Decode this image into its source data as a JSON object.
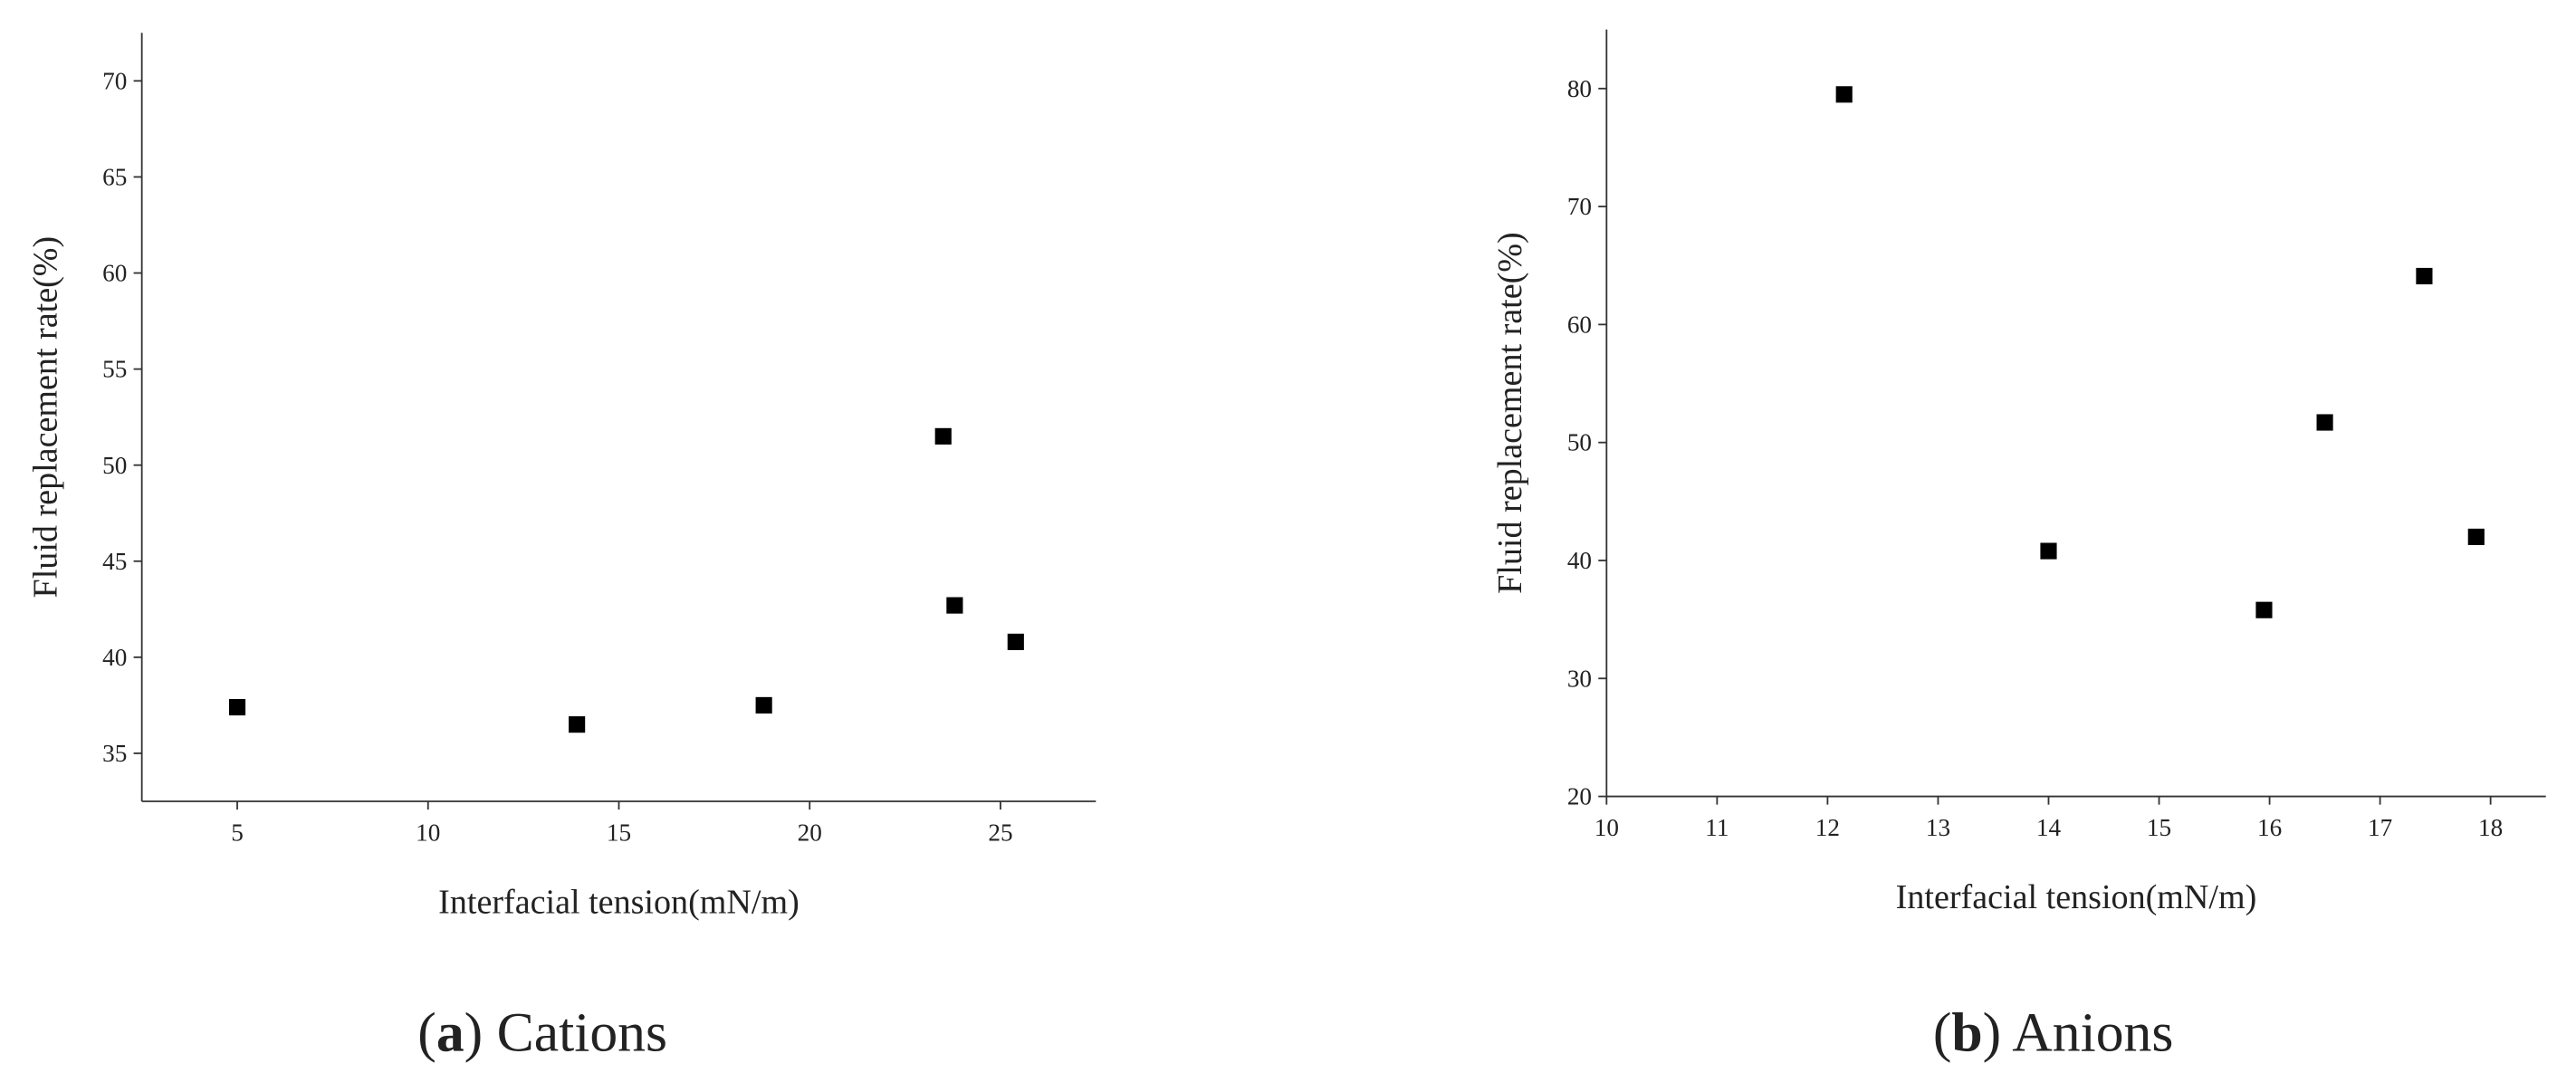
{
  "chart_data": [
    {
      "type": "scatter",
      "xlabel": "Interfacial tension(mN/m)",
      "ylabel": "Fluid replacement rate(%)",
      "caption": [
        "(",
        "a",
        ") Cations"
      ],
      "x": [
        5,
        13.9,
        18.8,
        23.5,
        23.8,
        25.4
      ],
      "values": [
        37.4,
        36.5,
        37.5,
        51.5,
        42.7,
        40.8
      ],
      "color": "#000000",
      "xlim": [
        2.5,
        27.5
      ],
      "xticks": [
        5,
        10,
        15,
        20,
        25
      ],
      "ylim": [
        32.5,
        72.5
      ],
      "yticks": [
        35,
        40,
        45,
        50,
        55,
        60,
        65,
        70
      ]
    },
    {
      "type": "scatter",
      "xlabel": "Interfacial tension(mN/m)",
      "ylabel": "Fluid replacement rate(%)",
      "caption": [
        "(",
        "b",
        ") Anions"
      ],
      "x": [
        12.15,
        14,
        15.95,
        16.5,
        17.4,
        17.87
      ],
      "values": [
        79.5,
        40.8,
        35.8,
        51.7,
        64.1,
        42
      ],
      "color": "#000000",
      "xlim": [
        10,
        18.5
      ],
      "xticks": [
        10,
        11,
        12,
        13,
        14,
        15,
        16,
        17,
        18
      ],
      "ylim": [
        20,
        85
      ],
      "yticks": [
        20,
        30,
        40,
        50,
        60,
        70,
        80
      ]
    }
  ]
}
